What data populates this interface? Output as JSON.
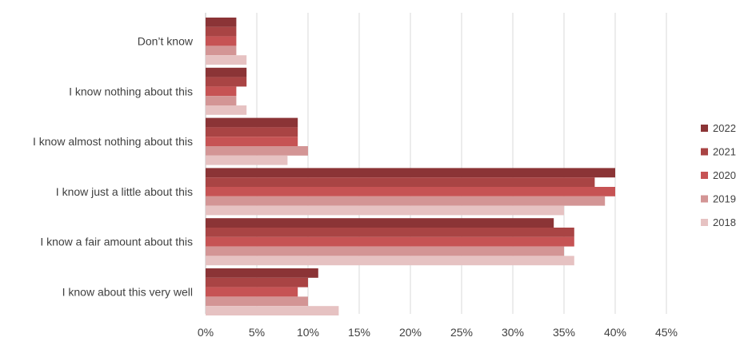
{
  "chart_data": {
    "type": "bar",
    "orientation": "horizontal",
    "categories": [
      "Don’t know",
      "I know nothing about this",
      "I know almost nothing about this",
      "I know just a little about this",
      "I know a fair amount about this",
      "I know about this very well"
    ],
    "series": [
      {
        "name": "2022",
        "color": "#8B3436",
        "values": [
          3,
          4,
          9,
          40,
          34,
          11
        ]
      },
      {
        "name": "2021",
        "color": "#A94444",
        "values": [
          3,
          4,
          9,
          38,
          36,
          10
        ]
      },
      {
        "name": "2020",
        "color": "#C65354",
        "values": [
          3,
          3,
          9,
          40,
          36,
          9
        ]
      },
      {
        "name": "2019",
        "color": "#D39595",
        "values": [
          3,
          3,
          10,
          39,
          35,
          10
        ]
      },
      {
        "name": "2018",
        "color": "#E6C2C2",
        "values": [
          4,
          4,
          8,
          35,
          36,
          13
        ]
      }
    ],
    "x_ticks": [
      "0%",
      "5%",
      "10%",
      "15%",
      "20%",
      "25%",
      "30%",
      "35%",
      "40%",
      "45%"
    ],
    "xlim": [
      0,
      45
    ],
    "grid": true,
    "legend_position": "right",
    "title": "",
    "xlabel": "",
    "ylabel": ""
  }
}
